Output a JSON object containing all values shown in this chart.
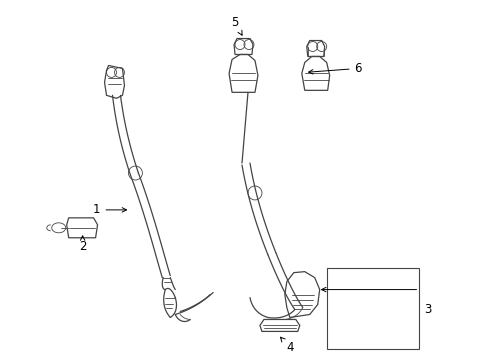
{
  "bg_color": "#ffffff",
  "line_color": "#444444",
  "text_color": "#000000",
  "label_fontsize": 8.5,
  "fig_width": 4.89,
  "fig_height": 3.6,
  "dpi": 100
}
